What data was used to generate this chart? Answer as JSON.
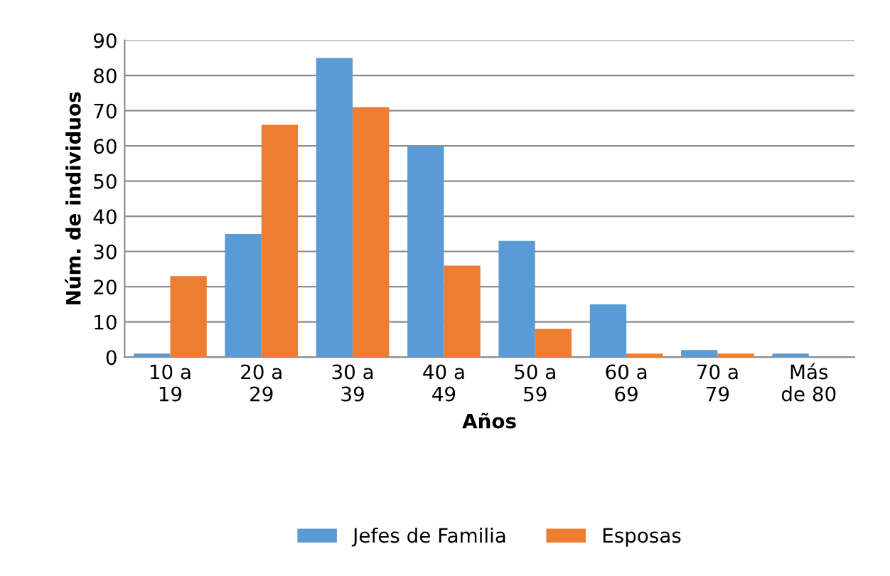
{
  "chart_data": {
    "type": "bar",
    "xlabel": "Años",
    "ylabel": "Núm. de individuos",
    "categories": [
      "10 a\n19",
      "20 a\n29",
      "30 a\n39",
      "40 a\n49",
      "50 a\n59",
      "60 a\n69",
      "70 a\n79",
      "Más\nde 80"
    ],
    "series": [
      {
        "name": "Jefes de Familia",
        "color": "#5b9bd5",
        "values": [
          1,
          35,
          85,
          60,
          33,
          15,
          2,
          1
        ]
      },
      {
        "name": "Esposas",
        "color": "#ed7d31",
        "values": [
          23,
          66,
          71,
          26,
          8,
          1,
          1,
          0
        ]
      }
    ],
    "ylim": [
      0,
      90
    ],
    "yticks": [
      0,
      10,
      20,
      30,
      40,
      50,
      60,
      70,
      80,
      90
    ],
    "grid": "y",
    "legend": "bottom"
  }
}
